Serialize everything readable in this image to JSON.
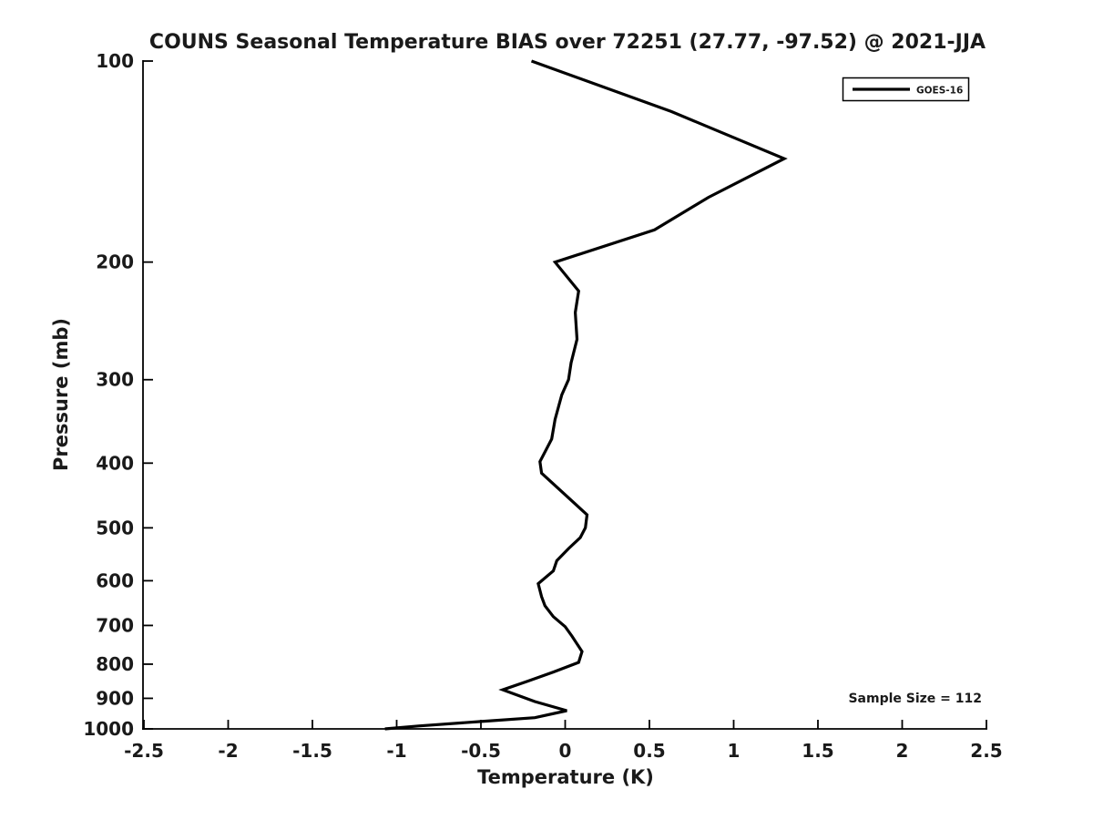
{
  "chart_data": {
    "type": "line",
    "title": "COUNS Seasonal Temperature BIAS over 72251 (27.77, -97.52) @ 2021-JJA",
    "xlabel": "Temperature (K)",
    "ylabel": "Pressure (mb)",
    "xlim": [
      -2.5,
      2.5
    ],
    "ylim": [
      100,
      1000
    ],
    "yscale": "log",
    "y_axis_inverted": true,
    "grid": false,
    "legend_position": "top-right",
    "x_ticks": [
      -2.5,
      -2,
      -1.5,
      -1,
      -0.5,
      0,
      0.5,
      1,
      1.5,
      2,
      2.5
    ],
    "x_tick_labels": [
      "-2.5",
      "-2",
      "-1.5",
      "-1",
      "-0.5",
      "0",
      "0.5",
      "1",
      "1.5",
      "2",
      "2.5"
    ],
    "y_ticks": [
      100,
      200,
      300,
      400,
      500,
      600,
      700,
      800,
      900,
      1000
    ],
    "y_tick_labels": [
      "100",
      "200",
      "300",
      "400",
      "500",
      "600",
      "700",
      "800",
      "900",
      "1000"
    ],
    "series": [
      {
        "name": "GOES-16",
        "color": "#000000",
        "x_is": "temperature_bias_K",
        "y_is": "pressure_mb",
        "points": [
          [
            -0.2,
            100
          ],
          [
            0.63,
            119
          ],
          [
            1.3,
            140
          ],
          [
            0.85,
            160
          ],
          [
            0.53,
            179
          ],
          [
            -0.06,
            200
          ],
          [
            0.08,
            221
          ],
          [
            0.06,
            238
          ],
          [
            0.07,
            261
          ],
          [
            0.035,
            283
          ],
          [
            0.02,
            300
          ],
          [
            -0.02,
            316
          ],
          [
            -0.06,
            344
          ],
          [
            -0.08,
            368
          ],
          [
            -0.15,
            398
          ],
          [
            -0.14,
            414
          ],
          [
            0.13,
            478
          ],
          [
            0.12,
            500
          ],
          [
            0.09,
            517
          ],
          [
            0.02,
            537
          ],
          [
            -0.05,
            560
          ],
          [
            -0.07,
            580
          ],
          [
            -0.16,
            606
          ],
          [
            -0.14,
            634
          ],
          [
            -0.12,
            654
          ],
          [
            -0.07,
            679
          ],
          [
            0.0,
            703
          ],
          [
            0.04,
            726
          ],
          [
            0.1,
            766
          ],
          [
            0.08,
            795
          ],
          [
            -0.07,
            822
          ],
          [
            -0.22,
            848
          ],
          [
            -0.37,
            874
          ],
          [
            -0.18,
            910
          ],
          [
            0.01,
            939
          ],
          [
            -0.18,
            962
          ],
          [
            -0.5,
            975
          ],
          [
            -0.87,
            990
          ],
          [
            -1.07,
            1000
          ]
        ]
      }
    ],
    "annotations": [
      {
        "text": "Sample Size = 112",
        "position": "bottom-right"
      }
    ]
  },
  "colors": {
    "line": "#000000",
    "text": "#1a1a1a",
    "background": "#ffffff"
  }
}
